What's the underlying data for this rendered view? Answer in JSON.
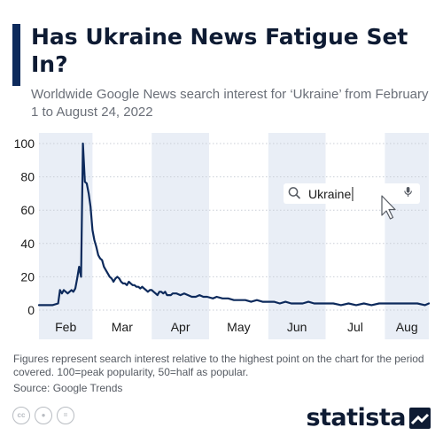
{
  "header": {
    "title": "Has Ukraine News Fatigue Set In?",
    "subtitle": "Worldwide Google News search interest for ‘Ukraine’ from February 1 to August 24, 2022"
  },
  "search_box": {
    "query": "Ukraine"
  },
  "footer": {
    "note": "Figures represent search interest relative to the highest point on the chart for the period covered. 100=peak popularity, 50=half as popular.",
    "source": "Source: Google Trends",
    "logo": "statista",
    "license_icons": [
      "cc-icon",
      "attribution-icon",
      "no-derivatives-icon"
    ]
  },
  "colors": {
    "line": "#0d2a5c",
    "band": "#e9eef6",
    "title": "#0e1b33",
    "accent": "#0d2a5c"
  },
  "chart_data": {
    "type": "line",
    "title": "",
    "xlabel": "",
    "ylabel": "",
    "ylim": [
      0,
      100
    ],
    "yticks": [
      0,
      20,
      40,
      60,
      80,
      100
    ],
    "xlim": [
      "2022-02-01",
      "2022-08-24"
    ],
    "month_labels": [
      {
        "label": "Feb",
        "start": "2022-02-01",
        "end": "2022-03-01",
        "shaded": true
      },
      {
        "label": "Mar",
        "start": "2022-03-01",
        "end": "2022-04-01",
        "shaded": false
      },
      {
        "label": "Apr",
        "start": "2022-04-01",
        "end": "2022-05-01",
        "shaded": true
      },
      {
        "label": "May",
        "start": "2022-05-01",
        "end": "2022-06-01",
        "shaded": false
      },
      {
        "label": "Jun",
        "start": "2022-06-01",
        "end": "2022-07-01",
        "shaded": true
      },
      {
        "label": "Jul",
        "start": "2022-07-01",
        "end": "2022-08-01",
        "shaded": false
      },
      {
        "label": "Aug",
        "start": "2022-08-01",
        "end": "2022-08-24",
        "shaded": true
      }
    ],
    "grid": true,
    "series": [
      {
        "points": [
          [
            "2022-02-01",
            3
          ],
          [
            "2022-02-04",
            3
          ],
          [
            "2022-02-08",
            3
          ],
          [
            "2022-02-11",
            4
          ],
          [
            "2022-02-12",
            12
          ],
          [
            "2022-02-13",
            10
          ],
          [
            "2022-02-14",
            12
          ],
          [
            "2022-02-15",
            11
          ],
          [
            "2022-02-16",
            10
          ],
          [
            "2022-02-17",
            11
          ],
          [
            "2022-02-18",
            12
          ],
          [
            "2022-02-19",
            11
          ],
          [
            "2022-02-20",
            13
          ],
          [
            "2022-02-21",
            19
          ],
          [
            "2022-02-22",
            26
          ],
          [
            "2022-02-23",
            20
          ],
          [
            "2022-02-24",
            100
          ],
          [
            "2022-02-25",
            77
          ],
          [
            "2022-02-26",
            76
          ],
          [
            "2022-02-27",
            70
          ],
          [
            "2022-02-28",
            62
          ],
          [
            "2022-03-01",
            48
          ],
          [
            "2022-03-02",
            42
          ],
          [
            "2022-03-03",
            38
          ],
          [
            "2022-03-04",
            33
          ],
          [
            "2022-03-05",
            31
          ],
          [
            "2022-03-06",
            30
          ],
          [
            "2022-03-07",
            26
          ],
          [
            "2022-03-08",
            24
          ],
          [
            "2022-03-09",
            22
          ],
          [
            "2022-03-10",
            20
          ],
          [
            "2022-03-11",
            19
          ],
          [
            "2022-03-12",
            17
          ],
          [
            "2022-03-13",
            19
          ],
          [
            "2022-03-14",
            20
          ],
          [
            "2022-03-15",
            19
          ],
          [
            "2022-03-16",
            17
          ],
          [
            "2022-03-17",
            16
          ],
          [
            "2022-03-18",
            16
          ],
          [
            "2022-03-19",
            15
          ],
          [
            "2022-03-20",
            17
          ],
          [
            "2022-03-21",
            16
          ],
          [
            "2022-03-22",
            15
          ],
          [
            "2022-03-23",
            15
          ],
          [
            "2022-03-24",
            14
          ],
          [
            "2022-03-25",
            14
          ],
          [
            "2022-03-26",
            13
          ],
          [
            "2022-03-27",
            14
          ],
          [
            "2022-03-28",
            13
          ],
          [
            "2022-03-29",
            12
          ],
          [
            "2022-03-30",
            11
          ],
          [
            "2022-03-31",
            12
          ],
          [
            "2022-04-01",
            12
          ],
          [
            "2022-04-02",
            11
          ],
          [
            "2022-04-03",
            10
          ],
          [
            "2022-04-04",
            9
          ],
          [
            "2022-04-05",
            11
          ],
          [
            "2022-04-06",
            11
          ],
          [
            "2022-04-07",
            10
          ],
          [
            "2022-04-08",
            11
          ],
          [
            "2022-04-09",
            9
          ],
          [
            "2022-04-10",
            9
          ],
          [
            "2022-04-11",
            9
          ],
          [
            "2022-04-12",
            10
          ],
          [
            "2022-04-14",
            10
          ],
          [
            "2022-04-16",
            9
          ],
          [
            "2022-04-18",
            10
          ],
          [
            "2022-04-20",
            9
          ],
          [
            "2022-04-22",
            8
          ],
          [
            "2022-04-24",
            8
          ],
          [
            "2022-04-26",
            9
          ],
          [
            "2022-04-28",
            8
          ],
          [
            "2022-04-30",
            8
          ],
          [
            "2022-05-03",
            7
          ],
          [
            "2022-05-05",
            8
          ],
          [
            "2022-05-08",
            7
          ],
          [
            "2022-05-11",
            7
          ],
          [
            "2022-05-14",
            6
          ],
          [
            "2022-05-17",
            6
          ],
          [
            "2022-05-20",
            6
          ],
          [
            "2022-05-23",
            5
          ],
          [
            "2022-05-26",
            6
          ],
          [
            "2022-05-29",
            5
          ],
          [
            "2022-06-01",
            5
          ],
          [
            "2022-06-04",
            5
          ],
          [
            "2022-06-07",
            4
          ],
          [
            "2022-06-10",
            5
          ],
          [
            "2022-06-13",
            4
          ],
          [
            "2022-06-16",
            4
          ],
          [
            "2022-06-19",
            4
          ],
          [
            "2022-06-22",
            5
          ],
          [
            "2022-06-25",
            4
          ],
          [
            "2022-06-28",
            4
          ],
          [
            "2022-07-01",
            4
          ],
          [
            "2022-07-05",
            4
          ],
          [
            "2022-07-09",
            3
          ],
          [
            "2022-07-13",
            4
          ],
          [
            "2022-07-17",
            3
          ],
          [
            "2022-07-21",
            4
          ],
          [
            "2022-07-25",
            3
          ],
          [
            "2022-07-29",
            4
          ],
          [
            "2022-08-02",
            4
          ],
          [
            "2022-08-06",
            4
          ],
          [
            "2022-08-10",
            4
          ],
          [
            "2022-08-14",
            4
          ],
          [
            "2022-08-18",
            4
          ],
          [
            "2022-08-22",
            3
          ],
          [
            "2022-08-24",
            4
          ]
        ]
      }
    ]
  }
}
